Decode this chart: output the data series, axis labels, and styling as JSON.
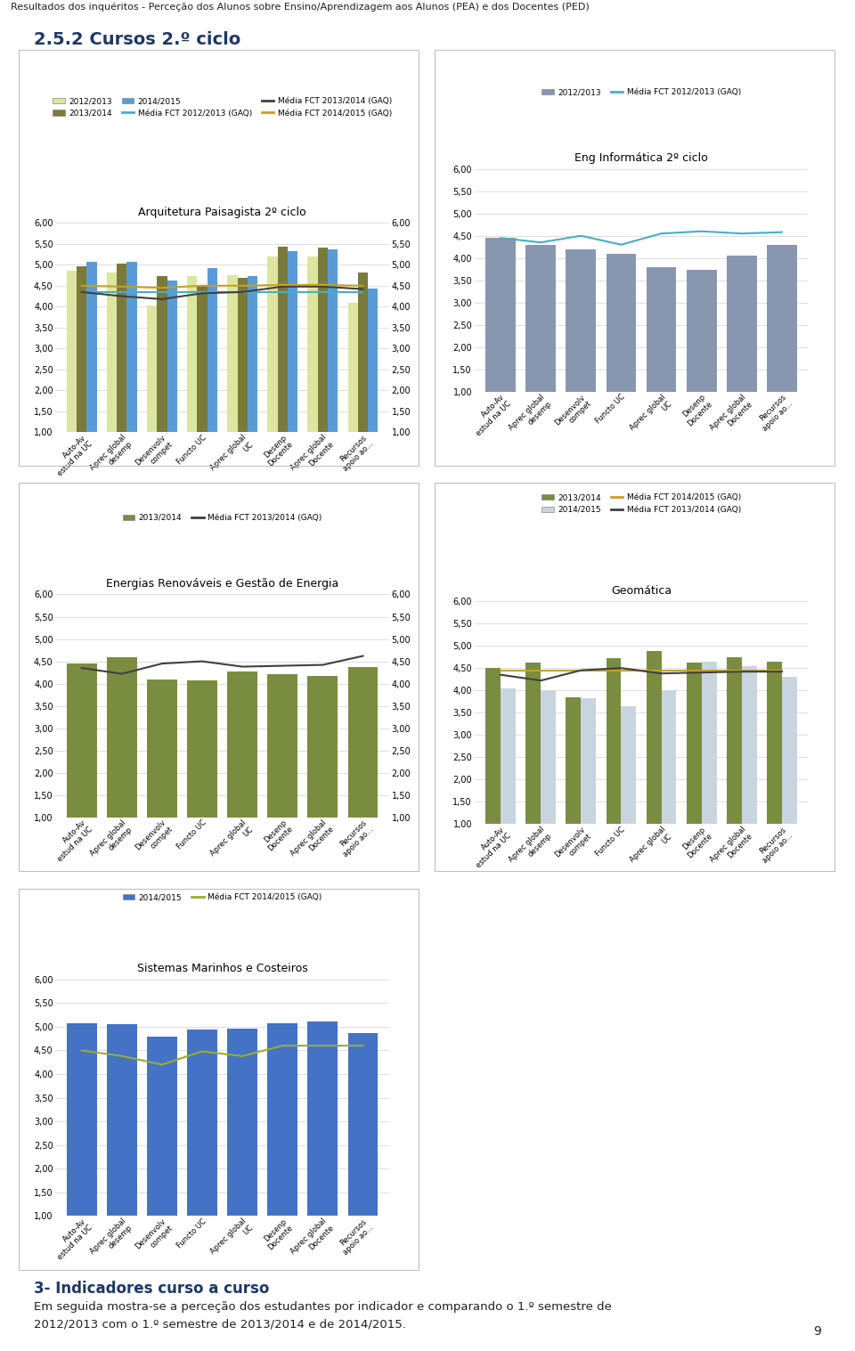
{
  "header": "Resultados dos inquéritos - Perceção dos Alunos sobre Ensino/Aprendizagem aos Alunos (PEA) e dos Docentes (PED)",
  "section_title": "2.5.2 Cursos 2.º ciclo",
  "cat_labels": [
    "Auto-Av estud na UC",
    "Aprec global desemp",
    "Desenvolv compet",
    "Functo UC",
    "Aprec global UC",
    "Desenp Docente",
    "Aprec global Docente",
    "Recursos apoio ao..."
  ],
  "charts": [
    {
      "title": "Arquitetura Paisagista 2º ciclo",
      "bar_years": [
        "2012/2013",
        "2013/2014",
        "2014/2015"
      ],
      "bar_colors": [
        "#dce6a0",
        "#7a7a3a",
        "#5b9bd5"
      ],
      "line_labels": [
        "Média FCT 2012/2013 (GAQ)",
        "Média FCT 2013/2014 (GAQ)",
        "Média FCT 2014/2015 (GAQ)"
      ],
      "line_colors": [
        "#4bacc6",
        "#404040",
        "#c8a020"
      ],
      "bar_data": [
        [
          4.85,
          4.82,
          4.03,
          4.72,
          4.76,
          5.2,
          5.2,
          4.1
        ],
        [
          4.97,
          5.03,
          4.72,
          4.5,
          4.68,
          5.43,
          5.42,
          4.82
        ],
        [
          5.07,
          5.07,
          4.63,
          4.93,
          4.72,
          5.33,
          5.37,
          4.43
        ]
      ],
      "line_data": [
        [
          4.35,
          4.35,
          4.35,
          4.35,
          4.35,
          4.35,
          4.35,
          4.35
        ],
        [
          4.35,
          4.25,
          4.18,
          4.32,
          4.35,
          4.48,
          4.48,
          4.42
        ],
        [
          4.5,
          4.48,
          4.45,
          4.5,
          4.5,
          4.52,
          4.52,
          4.5
        ]
      ],
      "has_right_axis": true,
      "ylim": [
        1.0,
        6.0
      ],
      "yticks": [
        1.0,
        1.5,
        2.0,
        2.5,
        3.0,
        3.5,
        4.0,
        4.5,
        5.0,
        5.5,
        6.0
      ]
    },
    {
      "title": "Eng Informática 2º ciclo",
      "bar_years": [
        "2012/2013"
      ],
      "bar_colors": [
        "#8896b0"
      ],
      "line_labels": [
        "Média FCT 2012/2013 (GAQ)"
      ],
      "line_colors": [
        "#4bacc6"
      ],
      "bar_data": [
        [
          4.45,
          4.3,
          4.2,
          4.1,
          3.8,
          3.73,
          4.05,
          4.3
        ]
      ],
      "line_data": [
        [
          4.45,
          4.35,
          4.5,
          4.3,
          4.55,
          4.6,
          4.55,
          4.58
        ]
      ],
      "has_right_axis": false,
      "ylim": [
        1.0,
        6.0
      ],
      "yticks": [
        1.0,
        1.5,
        2.0,
        2.5,
        3.0,
        3.5,
        4.0,
        4.5,
        5.0,
        5.5,
        6.0
      ]
    },
    {
      "title": "Energias Renováveis e Gestão de Energia",
      "bar_years": [
        "2013/2014"
      ],
      "bar_colors": [
        "#7a8c40"
      ],
      "line_labels": [
        "Média FCT 2013/2014 (GAQ)"
      ],
      "line_colors": [
        "#404040"
      ],
      "bar_data": [
        [
          4.45,
          4.6,
          4.1,
          4.08,
          4.28,
          4.22,
          4.18,
          4.38
        ]
      ],
      "line_data": [
        [
          4.35,
          4.22,
          4.45,
          4.5,
          4.38,
          4.4,
          4.42,
          4.62
        ]
      ],
      "has_right_axis": true,
      "ylim": [
        1.0,
        6.0
      ],
      "yticks": [
        1.0,
        1.5,
        2.0,
        2.5,
        3.0,
        3.5,
        4.0,
        4.5,
        5.0,
        5.5,
        6.0
      ]
    },
    {
      "title": "Geomática",
      "bar_years": [
        "2013/2014",
        "2014/2015"
      ],
      "bar_colors": [
        "#7a8c40",
        "#c8d5e0"
      ],
      "line_labels": [
        "Média FCT 2014/2015 (GAQ)",
        "Média FCT 2013/2014 (GAQ)"
      ],
      "line_colors": [
        "#c8a020",
        "#404040"
      ],
      "bar_data": [
        [
          4.5,
          4.62,
          3.85,
          4.72,
          4.88,
          4.62,
          4.75,
          4.65
        ],
        [
          4.05,
          4.0,
          3.82,
          3.65,
          4.0,
          4.65,
          4.55,
          4.3
        ]
      ],
      "line_data": [
        [
          4.45,
          4.45,
          4.45,
          4.45,
          4.45,
          4.45,
          4.45,
          4.45
        ],
        [
          4.35,
          4.22,
          4.45,
          4.5,
          4.38,
          4.4,
          4.42,
          4.42
        ]
      ],
      "has_right_axis": false,
      "ylim": [
        1.0,
        6.0
      ],
      "yticks": [
        1.0,
        1.5,
        2.0,
        2.5,
        3.0,
        3.5,
        4.0,
        4.5,
        5.0,
        5.5,
        6.0
      ]
    },
    {
      "title": "Sistemas Marinhos e Costeiros",
      "bar_years": [
        "2014/2015"
      ],
      "bar_colors": [
        "#4472c4"
      ],
      "line_labels": [
        "Média FCT 2014/2015 (GAQ)"
      ],
      "line_colors": [
        "#9aad2a"
      ],
      "bar_data": [
        [
          5.08,
          5.05,
          4.8,
          4.95,
          4.97,
          5.08,
          5.12,
          4.87
        ]
      ],
      "line_data": [
        [
          4.5,
          4.38,
          4.2,
          4.48,
          4.38,
          4.6,
          4.6,
          4.6
        ]
      ],
      "has_right_axis": false,
      "ylim": [
        1.0,
        6.0
      ],
      "yticks": [
        1.0,
        1.5,
        2.0,
        2.5,
        3.0,
        3.5,
        4.0,
        4.5,
        5.0,
        5.5,
        6.0
      ]
    }
  ],
  "footer_title": "3- Indicadores curso a curso",
  "footer_text1": "Em seguida mostra-se a perceção dos estudantes por indicador e comparando o 1.º semestre de",
  "footer_text2": "2012/2013 com o 1.º semestre de 2013/2014 e de 2014/2015.",
  "page_number": "9",
  "bg_color": "#ffffff",
  "box_color": "#d0d0d0",
  "legend_ncols": [
    [
      2,
      3
    ],
    [
      2
    ],
    [
      1,
      2
    ],
    [
      2,
      2
    ],
    [
      1,
      2
    ]
  ]
}
